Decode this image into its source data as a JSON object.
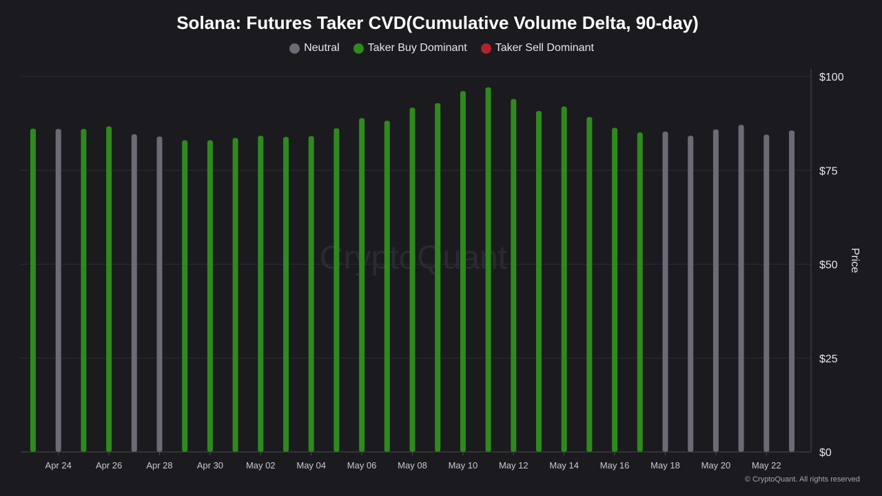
{
  "chart_data": {
    "type": "bar",
    "title": "Solana: Futures Taker CVD(Cumulative Volume Delta, 90-day)",
    "ylabel": "Price",
    "xlabel": "",
    "ylim": [
      0,
      100
    ],
    "yticks": [
      "$0",
      "$25",
      "$50",
      "$75",
      "$100"
    ],
    "ytick_values": [
      0,
      25,
      50,
      75,
      100
    ],
    "xtick_labels": [
      "Apr 24",
      "Apr 26",
      "Apr 28",
      "Apr 30",
      "May 02",
      "May 04",
      "May 06",
      "May 08",
      "May 10",
      "May 12",
      "May 14",
      "May 16",
      "May 18",
      "May 20",
      "May 22"
    ],
    "legend_position": "top-center",
    "grid": true,
    "legend": [
      {
        "name": "Neutral",
        "color": "#6b6a75"
      },
      {
        "name": "Taker Buy Dominant",
        "color": "#2f8a1d"
      },
      {
        "name": "Taker Sell Dominant",
        "color": "#b0242c"
      }
    ],
    "categories": [
      "Apr 23",
      "Apr 24",
      "Apr 25",
      "Apr 26",
      "Apr 27",
      "Apr 28",
      "Apr 29",
      "Apr 30",
      "May 01",
      "May 02",
      "May 03",
      "May 04",
      "May 05",
      "May 06",
      "May 07",
      "May 08",
      "May 09",
      "May 10",
      "May 11",
      "May 12",
      "May 13",
      "May 14",
      "May 15",
      "May 16",
      "May 17",
      "May 18",
      "May 19",
      "May 20",
      "May 21",
      "May 22",
      "May 23"
    ],
    "values": [
      86.1,
      86.0,
      86.0,
      86.7,
      84.6,
      84.0,
      83.0,
      83.0,
      83.6,
      84.2,
      83.9,
      84.1,
      86.2,
      88.9,
      88.2,
      91.7,
      92.9,
      96.1,
      97.1,
      94.0,
      90.8,
      92.0,
      89.2,
      86.3,
      85.1,
      85.3,
      84.2,
      85.9,
      87.1,
      84.5,
      85.6
    ],
    "dominance": [
      "Taker Buy Dominant",
      "Neutral",
      "Taker Buy Dominant",
      "Taker Buy Dominant",
      "Neutral",
      "Neutral",
      "Taker Buy Dominant",
      "Taker Buy Dominant",
      "Taker Buy Dominant",
      "Taker Buy Dominant",
      "Taker Buy Dominant",
      "Taker Buy Dominant",
      "Taker Buy Dominant",
      "Taker Buy Dominant",
      "Taker Buy Dominant",
      "Taker Buy Dominant",
      "Taker Buy Dominant",
      "Taker Buy Dominant",
      "Taker Buy Dominant",
      "Taker Buy Dominant",
      "Taker Buy Dominant",
      "Taker Buy Dominant",
      "Taker Buy Dominant",
      "Taker Buy Dominant",
      "Taker Buy Dominant",
      "Neutral",
      "Neutral",
      "Neutral",
      "Neutral",
      "Neutral",
      "Neutral"
    ],
    "watermark": "CryptoQuant"
  },
  "footer": "© CryptoQuant. All rights reserved",
  "colors": {
    "background": "#1b1b1f",
    "grid": "#2c2c32",
    "axis": "#4a4a52"
  }
}
